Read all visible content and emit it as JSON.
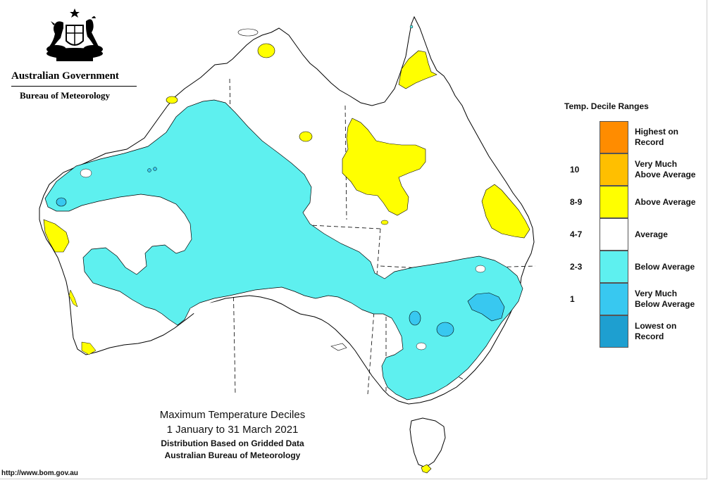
{
  "header": {
    "government": "Australian Government",
    "bureau": "Bureau of Meteorology",
    "crest_icon": "coat-of-arms-icon"
  },
  "map": {
    "region": "Australia",
    "boundaries_style": "dashed"
  },
  "legend": {
    "title": "Temp. Decile Ranges",
    "items": [
      {
        "range": "",
        "label_line1": "Highest on",
        "label_line2": "Record",
        "color": "#ff8c00"
      },
      {
        "range": "10",
        "label_line1": "Very Much",
        "label_line2": "Above Average",
        "color": "#ffbf00"
      },
      {
        "range": "8-9",
        "label_line1": "Above Average",
        "label_line2": "",
        "color": "#ffff00"
      },
      {
        "range": "4-7",
        "label_line1": "Average",
        "label_line2": "",
        "color": "#ffffff"
      },
      {
        "range": "2-3",
        "label_line1": "Below Average",
        "label_line2": "",
        "color": "#5ef0ef"
      },
      {
        "range": "1",
        "label_line1": "Very Much",
        "label_line2": "Below Average",
        "color": "#38c8f0"
      },
      {
        "range": "",
        "label_line1": "Lowest on",
        "label_line2": "Record",
        "color": "#1e9fd0"
      }
    ]
  },
  "caption": {
    "title": "Maximum Temperature Deciles",
    "period": "1 January to 31 March 2021",
    "distribution": "Distribution Based on Gridded Data",
    "source": "Australian Bureau of Meteorology"
  },
  "footer": {
    "url": "http://www.bom.gov.au"
  }
}
